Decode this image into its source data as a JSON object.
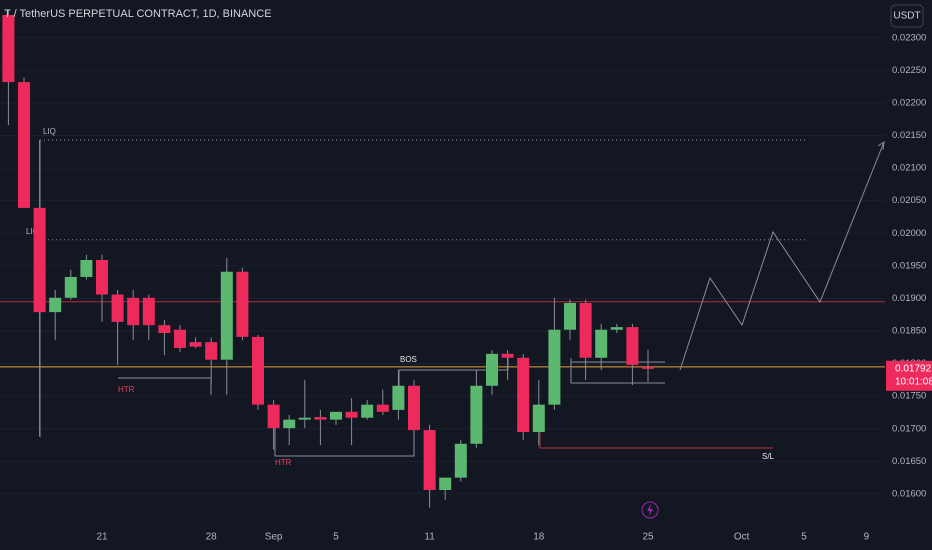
{
  "chart_data": {
    "type": "candlestick",
    "title": "T / TetherUS PERPETUAL CONTRACT, 1D, BINANCE",
    "currency_button": "USDT",
    "price_label": "0.01792",
    "countdown": "10:01:08",
    "up_color": "#5cb870",
    "down_color": "#ee2a5d",
    "categories": [
      null,
      null,
      null,
      null,
      null,
      null,
      "21",
      null,
      null,
      null,
      null,
      null,
      null,
      "28",
      null,
      null,
      null,
      "Sep",
      null,
      null,
      null,
      "5",
      null,
      null,
      null,
      null,
      null,
      "11",
      null,
      null,
      null,
      null,
      null,
      null,
      "18",
      null,
      null,
      null,
      null,
      null,
      null,
      "25",
      null,
      null,
      null,
      null,
      null,
      "Oct",
      null,
      null,
      null,
      "5",
      null,
      null,
      null,
      "9"
    ],
    "open": [
      0.02335,
      0.02232,
      0.02039,
      0.01879,
      0.01901,
      0.01933,
      0.01959,
      0.01906,
      0.01901,
      0.01901,
      0.01859,
      0.01852,
      0.01833,
      0.01833,
      0.01806,
      0.01941,
      0.01841,
      0.01737,
      0.01701,
      0.01714,
      0.01718,
      0.01714,
      0.01726,
      0.01717,
      0.01737,
      0.01729,
      0.01766,
      0.01698,
      0.01606,
      0.01625,
      0.01677,
      0.01766,
      0.01815,
      0.01809,
      0.01695,
      0.01737,
      0.01852,
      0.01893,
      0.01809,
      0.01852,
      0.01856,
      0.01795,
      null,
      null,
      null,
      null,
      null,
      null,
      null,
      null,
      null,
      null,
      null,
      null,
      null,
      null
    ],
    "high": [
      0.02343,
      0.02239,
      0.02143,
      0.01913,
      0.01944,
      0.01967,
      0.01967,
      0.01913,
      0.01913,
      0.01906,
      0.01867,
      0.01859,
      0.0184,
      0.0184,
      0.01962,
      0.01947,
      0.01844,
      0.01744,
      0.01721,
      0.01775,
      0.01729,
      0.01726,
      0.01747,
      0.01744,
      0.0176,
      0.0179,
      0.01775,
      0.01706,
      0.01625,
      0.01683,
      0.0179,
      0.01821,
      0.01821,
      0.01815,
      0.01775,
      0.01901,
      0.01898,
      0.01898,
      0.01861,
      0.01861,
      0.01861,
      0.01821,
      null,
      null,
      null,
      null,
      null,
      null,
      null,
      null,
      null,
      null,
      null,
      null,
      null,
      null
    ],
    "low": [
      0.02166,
      0.02039,
      0.01688,
      0.01836,
      0.01898,
      0.01929,
      0.01864,
      0.01798,
      0.01836,
      0.01836,
      0.01813,
      0.01818,
      0.01824,
      0.01767,
      0.01752,
      0.01836,
      0.01729,
      0.01668,
      0.01675,
      0.01701,
      0.01675,
      0.01706,
      0.01675,
      0.01714,
      0.01721,
      0.01714,
      0.0166,
      0.01579,
      0.01591,
      0.01619,
      0.01671,
      0.01752,
      0.01775,
      0.01683,
      0.01674,
      0.01729,
      0.01836,
      0.01775,
      0.0179,
      0.01847,
      0.01767,
      0.01772,
      null,
      null,
      null,
      null,
      null,
      null,
      null,
      null,
      null,
      null,
      null,
      null,
      null,
      null
    ],
    "close": [
      0.02232,
      0.02039,
      0.01879,
      0.01901,
      0.01933,
      0.01959,
      0.01906,
      0.01864,
      0.01859,
      0.01859,
      0.01847,
      0.01824,
      0.01826,
      0.01806,
      0.01941,
      0.01841,
      0.01737,
      0.01701,
      0.01714,
      0.01717,
      0.01714,
      0.01726,
      0.01717,
      0.01737,
      0.01726,
      0.01766,
      0.01698,
      0.01606,
      0.01625,
      0.01677,
      0.01766,
      0.01815,
      0.01809,
      0.01695,
      0.01737,
      0.01852,
      0.01893,
      0.01809,
      0.01852,
      0.01856,
      0.01798,
      0.01792,
      null,
      null,
      null,
      null,
      null,
      null,
      null,
      null,
      null,
      null,
      null,
      null,
      null,
      null
    ],
    "ylim": [
      0.0156,
      0.02358
    ],
    "yticks": [
      {
        "value": 0.016,
        "label": "0.01600"
      },
      {
        "value": 0.0165,
        "label": "0.01650"
      },
      {
        "value": 0.017,
        "label": "0.01700"
      },
      {
        "value": 0.0175,
        "label": "0.01750"
      },
      {
        "value": 0.018,
        "label": "0.01800"
      },
      {
        "value": 0.0185,
        "label": "0.01850"
      },
      {
        "value": 0.019,
        "label": "0.01900"
      },
      {
        "value": 0.0195,
        "label": "0.01950"
      },
      {
        "value": 0.02,
        "label": "0.02000"
      },
      {
        "value": 0.0205,
        "label": "0.02050"
      },
      {
        "value": 0.021,
        "label": "0.02100"
      },
      {
        "value": 0.0215,
        "label": "0.02150"
      },
      {
        "value": 0.022,
        "label": "0.02200"
      },
      {
        "value": 0.0225,
        "label": "0.02250"
      },
      {
        "value": 0.023,
        "label": "0.02300"
      }
    ],
    "levels": [
      {
        "value": 0.01895,
        "color": "#b2303a"
      },
      {
        "value": 0.01795,
        "color": "#e8a33a"
      }
    ],
    "liq_levels": [
      {
        "value": 0.02143,
        "label": "LIQ"
      },
      {
        "value": 0.0199,
        "label": "LIQ"
      }
    ],
    "annotations": [
      "HTR",
      "HTR",
      "BOS",
      "S/L"
    ]
  }
}
